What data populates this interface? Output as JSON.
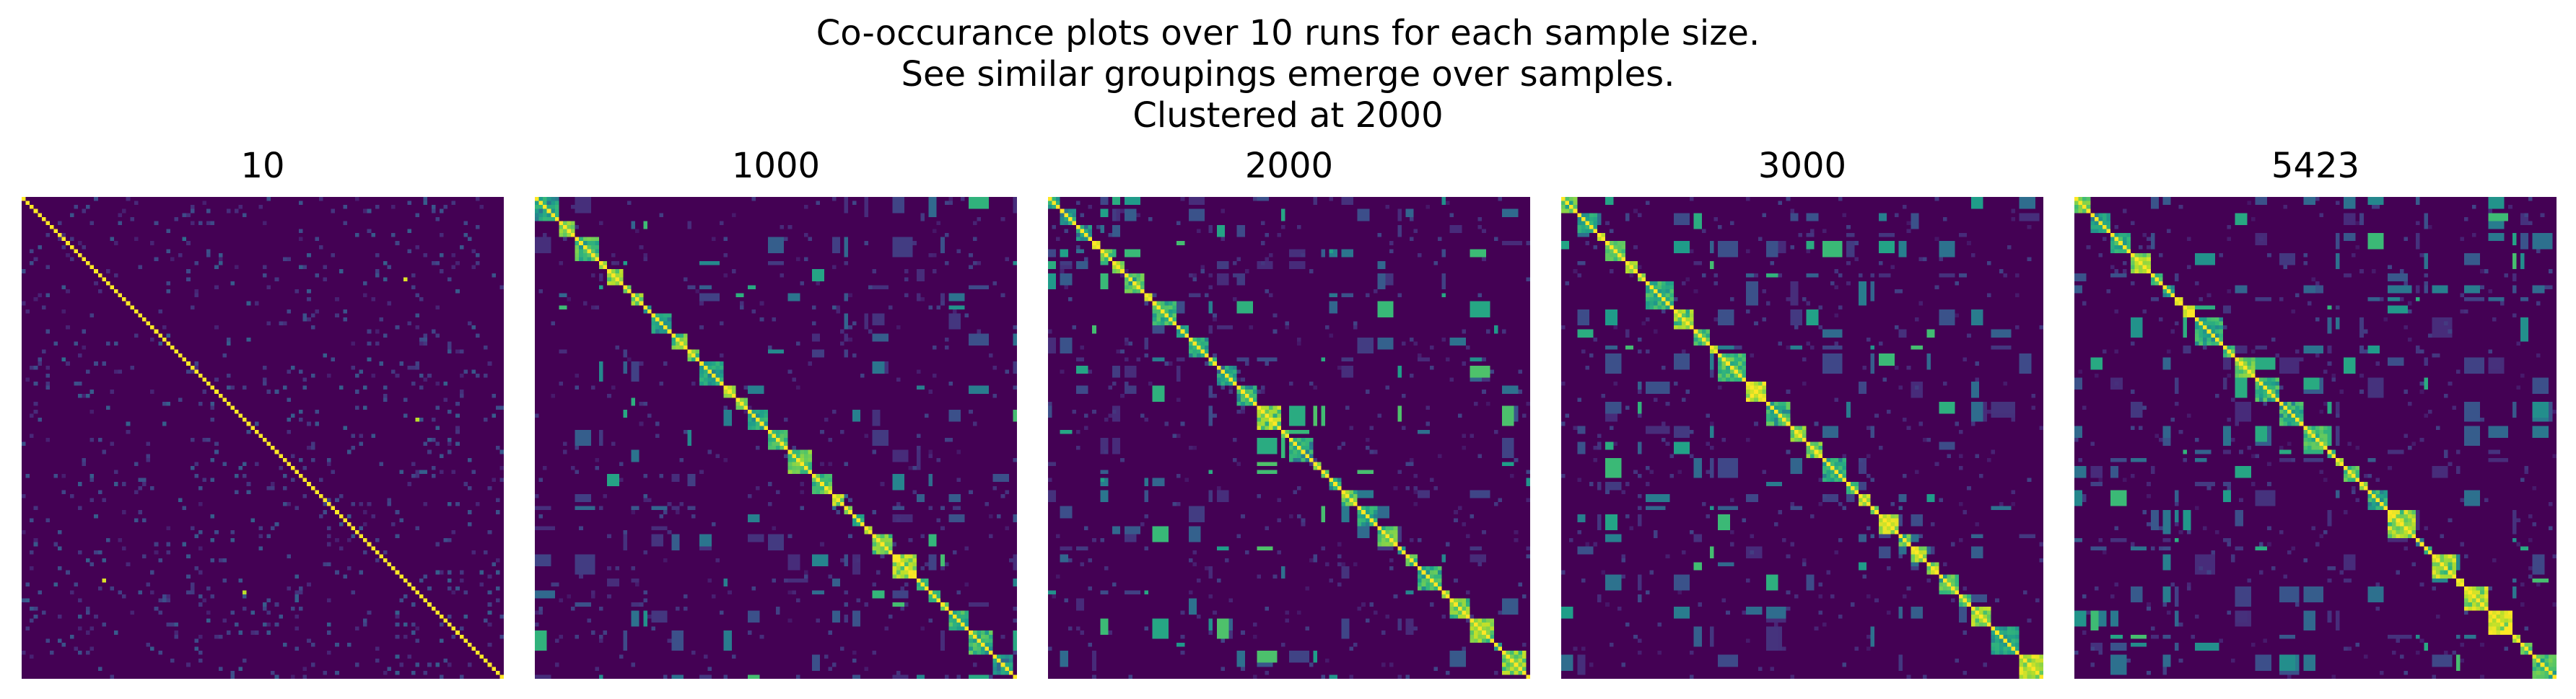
{
  "chart_data": {
    "type": "heatmap",
    "title_lines": [
      "Co-occurance plots over 10 runs for each sample size.",
      "See similar groupings emerge over samples.",
      "Clustered at 2000"
    ],
    "colormap": "viridis",
    "value_range": [
      0,
      1
    ],
    "axes_visible": false,
    "panels": [
      {
        "title": "10",
        "n_items": 120,
        "structure": "diagonal only, sparse random off-diagonal co-occurrence"
      },
      {
        "title": "1000",
        "n_items": 120,
        "structure": "block-diagonal clusters along diagonal"
      },
      {
        "title": "2000",
        "n_items": 120,
        "structure": "clear block-diagonal clusters (clustering reference)"
      },
      {
        "title": "3000",
        "n_items": 120,
        "structure": "block-diagonal clusters with some off-diagonal blocks"
      },
      {
        "title": "5423",
        "n_items": 120,
        "structure": "block-diagonal clusters with more scattered off-diagonal blocks"
      }
    ]
  }
}
